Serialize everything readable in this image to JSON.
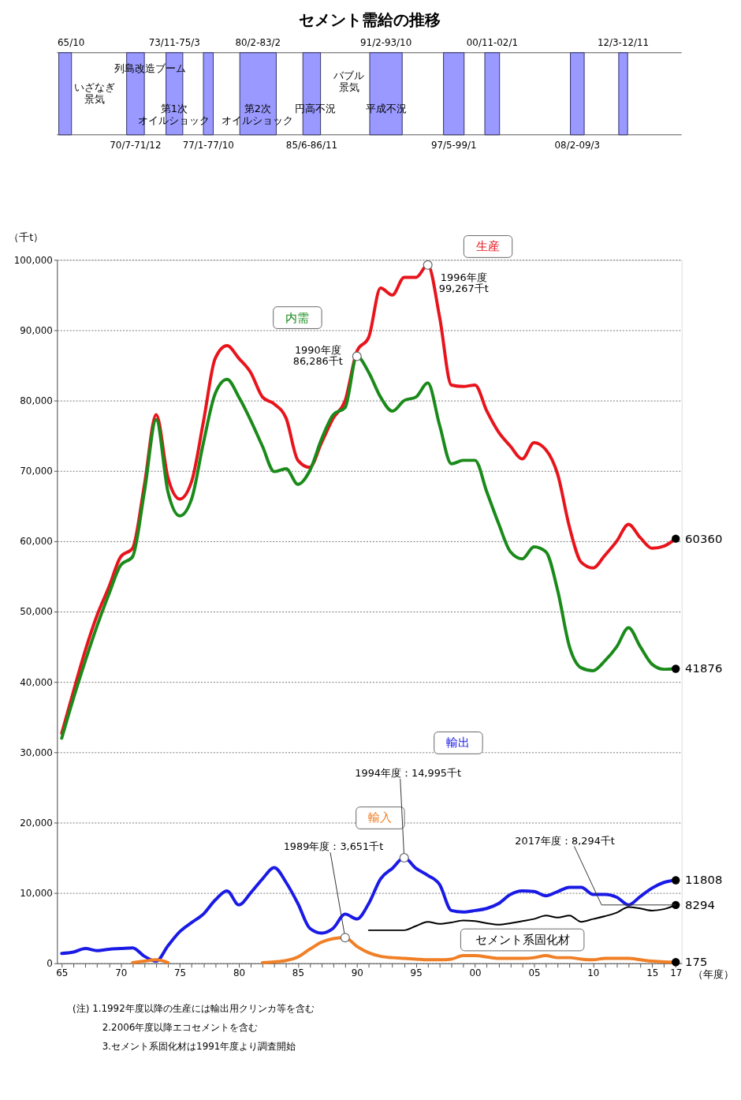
{
  "chart_data": {
    "type": "line",
    "title": "セメント需給の推移",
    "xlabel": "（年度）",
    "ylabel": "（千t）",
    "x": [
      1965,
      1966,
      1967,
      1968,
      1969,
      1970,
      1971,
      1972,
      1973,
      1974,
      1975,
      1976,
      1977,
      1978,
      1979,
      1980,
      1981,
      1982,
      1983,
      1984,
      1985,
      1986,
      1987,
      1988,
      1989,
      1990,
      1991,
      1992,
      1993,
      1994,
      1995,
      1996,
      1997,
      1998,
      1999,
      2000,
      2001,
      2002,
      2003,
      2004,
      2005,
      2006,
      2007,
      2008,
      2009,
      2010,
      2011,
      2012,
      2013,
      2014,
      2015,
      2016,
      2017
    ],
    "xlim": [
      1964.6,
      2017.5
    ],
    "xticks": [
      {
        "value": 1965,
        "label": "65"
      },
      {
        "value": 1966,
        "label": null
      },
      {
        "value": 1967,
        "label": null
      },
      {
        "value": 1968,
        "label": null
      },
      {
        "value": 1969,
        "label": null
      },
      {
        "value": 1970,
        "label": "70"
      },
      {
        "value": 1971,
        "label": null
      },
      {
        "value": 1972,
        "label": null
      },
      {
        "value": 1973,
        "label": null
      },
      {
        "value": 1974,
        "label": null
      },
      {
        "value": 1975,
        "label": "75"
      },
      {
        "value": 1976,
        "label": null
      },
      {
        "value": 1977,
        "label": null
      },
      {
        "value": 1978,
        "label": null
      },
      {
        "value": 1979,
        "label": null
      },
      {
        "value": 1980,
        "label": "80"
      },
      {
        "value": 1981,
        "label": null
      },
      {
        "value": 1982,
        "label": null
      },
      {
        "value": 1983,
        "label": null
      },
      {
        "value": 1984,
        "label": null
      },
      {
        "value": 1985,
        "label": "85"
      },
      {
        "value": 1986,
        "label": null
      },
      {
        "value": 1987,
        "label": null
      },
      {
        "value": 1988,
        "label": null
      },
      {
        "value": 1989,
        "label": null
      },
      {
        "value": 1990,
        "label": "90"
      },
      {
        "value": 1991,
        "label": null
      },
      {
        "value": 1992,
        "label": null
      },
      {
        "value": 1993,
        "label": null
      },
      {
        "value": 1994,
        "label": null
      },
      {
        "value": 1995,
        "label": "95"
      },
      {
        "value": 1996,
        "label": null
      },
      {
        "value": 1997,
        "label": null
      },
      {
        "value": 1998,
        "label": null
      },
      {
        "value": 1999,
        "label": null
      },
      {
        "value": 2000,
        "label": "00"
      },
      {
        "value": 2001,
        "label": null
      },
      {
        "value": 2002,
        "label": null
      },
      {
        "value": 2003,
        "label": null
      },
      {
        "value": 2004,
        "label": null
      },
      {
        "value": 2005,
        "label": "05"
      },
      {
        "value": 2006,
        "label": null
      },
      {
        "value": 2007,
        "label": null
      },
      {
        "value": 2008,
        "label": null
      },
      {
        "value": 2009,
        "label": null
      },
      {
        "value": 2010,
        "label": "10"
      },
      {
        "value": 2011,
        "label": null
      },
      {
        "value": 2012,
        "label": null
      },
      {
        "value": 2013,
        "label": null
      },
      {
        "value": 2014,
        "label": null
      },
      {
        "value": 2015,
        "label": "15"
      },
      {
        "value": 2016,
        "label": null
      },
      {
        "value": 2017,
        "label": "17"
      }
    ],
    "ylim": [
      0,
      100000
    ],
    "yticks": [
      0,
      {
        "value": 10000,
        "label": "10,000"
      },
      {
        "value": 20000,
        "label": "20,000"
      },
      {
        "value": 30000,
        "label": "30,000"
      },
      {
        "value": 40000,
        "label": "40,000"
      },
      {
        "value": 50000,
        "label": "50,000"
      },
      {
        "value": 60000,
        "label": "60,000"
      },
      {
        "value": 70000,
        "label": "70,000"
      },
      {
        "value": 80000,
        "label": "80,000"
      },
      {
        "value": 90000,
        "label": "90,000"
      },
      {
        "value": 100000,
        "label": "100,000"
      }
    ],
    "grid": "y",
    "legend": false,
    "marker": "none",
    "line_style": "solid",
    "series": [
      {
        "name": "生産",
        "color": "#e8141c",
        "values": [
          32700,
          38700,
          44500,
          49500,
          53500,
          57800,
          59000,
          68000,
          78000,
          69000,
          66000,
          68500,
          77000,
          86000,
          87800,
          86000,
          84000,
          80500,
          79500,
          77500,
          71500,
          70500,
          74000,
          77500,
          80000,
          87000,
          89000,
          96000,
          95000,
          97500,
          97500,
          99267,
          91900,
          82200,
          82000,
          82200,
          78500,
          75500,
          73500,
          71700,
          74000,
          73000,
          69500,
          62000,
          57000,
          56200,
          58000,
          60000,
          62400,
          60500,
          59000,
          59300,
          60360
        ],
        "value_labels": [
          null,
          null,
          null,
          null,
          null,
          null,
          null,
          null,
          null,
          null,
          null,
          null,
          null,
          null,
          null,
          null,
          null,
          null,
          null,
          null,
          null,
          null,
          null,
          null,
          null,
          null,
          null,
          null,
          null,
          null,
          null,
          null,
          null,
          null,
          null,
          null,
          null,
          null,
          null,
          null,
          null,
          null,
          null,
          null,
          null,
          null,
          null,
          null,
          null,
          null,
          null,
          null,
          "60360"
        ]
      },
      {
        "name": "内需",
        "color": "#1a8a1a",
        "values": [
          32000,
          37700,
          43000,
          48000,
          52500,
          56600,
          57800,
          67000,
          77300,
          67000,
          63600,
          66000,
          74000,
          81000,
          83000,
          80500,
          77200,
          73500,
          69900,
          70300,
          68100,
          70000,
          74500,
          78000,
          79000,
          86286,
          84000,
          80500,
          78500,
          80000,
          80500,
          82500,
          76500,
          71000,
          71500,
          71500,
          67000,
          62500,
          58500,
          57500,
          59200,
          58500,
          53000,
          45000,
          42000,
          41600,
          43000,
          45000,
          47700,
          45000,
          42500,
          41800,
          41876
        ],
        "value_labels": [
          null,
          null,
          null,
          null,
          null,
          null,
          null,
          null,
          null,
          null,
          null,
          null,
          null,
          null,
          null,
          null,
          null,
          null,
          null,
          null,
          null,
          null,
          null,
          null,
          null,
          null,
          null,
          null,
          null,
          null,
          null,
          null,
          null,
          null,
          null,
          null,
          null,
          null,
          null,
          null,
          null,
          null,
          null,
          null,
          null,
          null,
          null,
          null,
          null,
          null,
          null,
          null,
          "41876"
        ]
      },
      {
        "name": "輸出",
        "color": "#1a1ae6",
        "values": [
          1400,
          1600,
          2100,
          1800,
          2000,
          2100,
          2200,
          1000,
          300,
          2500,
          4500,
          5800,
          7000,
          9000,
          10300,
          8300,
          10000,
          12000,
          13600,
          11500,
          8500,
          5000,
          4300,
          5000,
          7000,
          6300,
          8500,
          12000,
          13500,
          14995,
          13500,
          12500,
          11200,
          7500,
          7300,
          7500,
          7800,
          8500,
          9800,
          10300,
          10200,
          9600,
          10200,
          10800,
          10800,
          9800,
          9800,
          9400,
          8300,
          9500,
          10700,
          11500,
          11808
        ],
        "value_labels": [
          null,
          null,
          null,
          null,
          null,
          null,
          null,
          null,
          null,
          null,
          null,
          null,
          null,
          null,
          null,
          null,
          null,
          null,
          null,
          null,
          null,
          null,
          null,
          null,
          null,
          null,
          null,
          null,
          null,
          null,
          null,
          null,
          null,
          null,
          null,
          null,
          null,
          null,
          null,
          null,
          null,
          null,
          null,
          null,
          null,
          null,
          null,
          null,
          null,
          null,
          null,
          null,
          "11808"
        ]
      },
      {
        "name": "輸入",
        "color": "#f07f26",
        "values": [
          null,
          null,
          null,
          null,
          null,
          null,
          100,
          300,
          500,
          100,
          null,
          null,
          null,
          null,
          null,
          null,
          null,
          100,
          200,
          400,
          900,
          2000,
          3000,
          3500,
          3651,
          2400,
          1500,
          1000,
          800,
          700,
          600,
          500,
          500,
          600,
          1100,
          1100,
          900,
          700,
          700,
          700,
          800,
          1100,
          800,
          800,
          600,
          500,
          700,
          700,
          700,
          500,
          300,
          200,
          175
        ],
        "value_labels": [
          null,
          null,
          null,
          null,
          null,
          null,
          null,
          null,
          null,
          null,
          null,
          null,
          null,
          null,
          null,
          null,
          null,
          null,
          null,
          null,
          null,
          null,
          null,
          null,
          null,
          null,
          null,
          null,
          null,
          null,
          null,
          null,
          null,
          null,
          null,
          null,
          null,
          null,
          null,
          null,
          null,
          null,
          null,
          null,
          null,
          null,
          null,
          null,
          null,
          null,
          null,
          null,
          "175"
        ]
      },
      {
        "name": "セメント系固化材",
        "color": "#000000",
        "x": [
          1991,
          1992,
          1993,
          1994,
          1995,
          1996,
          1997,
          1998,
          1999,
          2000,
          2001,
          2002,
          2003,
          2004,
          2005,
          2006,
          2007,
          2008,
          2009,
          2010,
          2011,
          2012,
          2013,
          2014,
          2015,
          2016,
          2017
        ],
        "values": [
          4700,
          4700,
          4700,
          4700,
          5300,
          5900,
          5600,
          5800,
          6100,
          6000,
          5700,
          5500,
          5700,
          6000,
          6300,
          6800,
          6500,
          6800,
          5900,
          6300,
          6700,
          7200,
          8000,
          7800,
          7500,
          7700,
          8294
        ],
        "value_labels": [
          null,
          null,
          null,
          null,
          null,
          null,
          null,
          null,
          null,
          null,
          null,
          null,
          null,
          null,
          null,
          null,
          null,
          null,
          null,
          null,
          null,
          null,
          null,
          null,
          null,
          null,
          "8294"
        ]
      }
    ],
    "annotations": [
      "65/10",
      "70/7-71/12",
      "73/11-75/3",
      "77/1-77/10",
      "80/2-83/2",
      "85/6-86/11",
      "91/2-93/10",
      "97/5-99/1",
      "00/11-02/1",
      "08/2-09/3",
      "12/3-12/11",
      "いざなぎ景気",
      "列島改造ブーム",
      "第1次オイルショック",
      "第2次オイルショック",
      "円高不況",
      "バブル景気",
      "平成不況",
      {
        "text": "1996年度\n99,267千t",
        "x": 1996,
        "y": 99267
      },
      {
        "text": "1990年度\n86,286千t",
        "x": 1990,
        "y": 86286
      },
      {
        "text": "1994年度：14,995千t",
        "x": 1994,
        "y": 14995
      },
      {
        "text": "1989年度：3,651千t",
        "x": 1989,
        "y": 3651
      },
      {
        "text": "2017年度：8,294千t",
        "x": 2017,
        "y": 8294
      },
      "(注) 1.1992年度以降の生産には輸出用クリンカ等を含む",
      "2.2006年度以降エコセメントを含む",
      "3.セメント系固化材は1991年度より調査開始"
    ]
  }
}
